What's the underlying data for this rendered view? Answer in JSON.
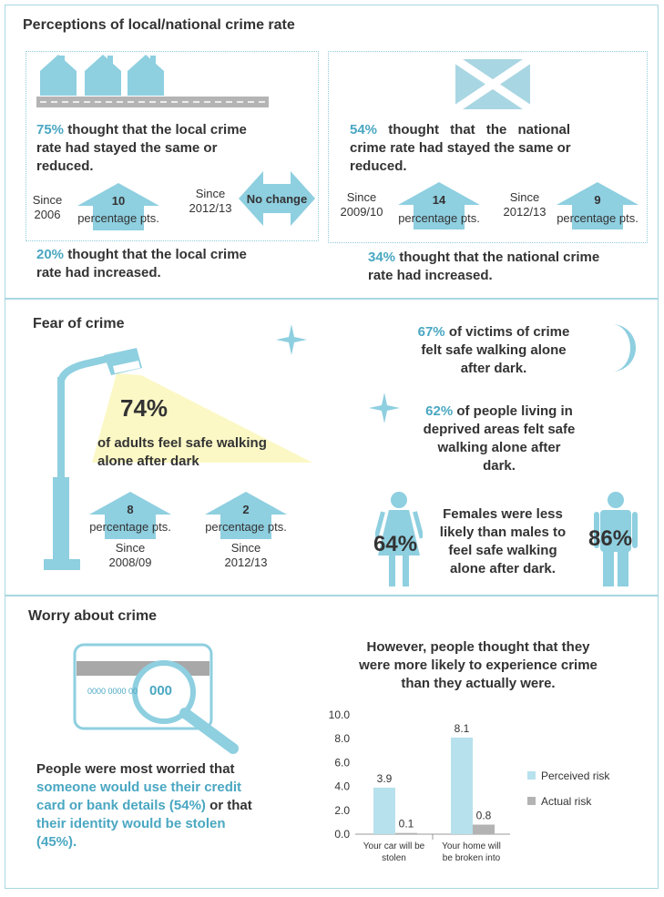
{
  "colors": {
    "accent": "#4aa7c2",
    "icon_blue": "#8ecfe0",
    "border": "#a9d6e2",
    "cone_yellow": "#fbf8c6",
    "actual_grey": "#b3b3b3"
  },
  "perceptions": {
    "title": "Perceptions of local/national crime rate",
    "local": {
      "icon": "houses-icon",
      "stayed_pct": "75%",
      "stayed_text_1": " thought that the local crime",
      "stayed_text_2": "rate had stayed the same or",
      "stayed_text_3": "reduced.",
      "since_a_1": "Since",
      "since_a_2": "2006",
      "arrow_a_value": "10",
      "arrow_a_label": "percentage pts.",
      "since_b_1": "Since",
      "since_b_2": "2012/13",
      "no_change": "No change",
      "increased_pct": "20%",
      "increased_text_1": " thought that the local crime",
      "increased_text_2": "rate had increased."
    },
    "national": {
      "icon": "saltire-flag-icon",
      "stayed_pct": "54%",
      "stayed_text_1": " thought that the national",
      "stayed_text_2": "crime rate had stayed the same or",
      "stayed_text_3": "reduced.",
      "since_a_1": "Since",
      "since_a_2": "2009/10",
      "arrow_a_value": "14",
      "arrow_a_label": "percentage pts.",
      "since_b_1": "Since",
      "since_b_2": "2012/13",
      "arrow_b_value": "9",
      "arrow_b_label": "percentage pts.",
      "increased_pct": "34%",
      "increased_text_1": " thought that the national crime",
      "increased_text_2": "rate had increased."
    }
  },
  "fear": {
    "title": "Fear of crime",
    "main_pct": "74%",
    "main_text_1": "of adults feel safe walking",
    "main_text_2": "alone after dark",
    "arrow_a_value": "8",
    "arrow_a_label": "percentage pts.",
    "arrow_a_since_1": "Since",
    "arrow_a_since_2": "2008/09",
    "arrow_b_value": "2",
    "arrow_b_label": "percentage pts.",
    "arrow_b_since_1": "Since",
    "arrow_b_since_2": "2012/13",
    "victims_pct": "67%",
    "victims_text_1": " of victims of crime",
    "victims_text_2": "felt safe walking alone",
    "victims_text_3": "after dark.",
    "deprived_pct": "62%",
    "deprived_text_1": " of people living in",
    "deprived_text_2": "deprived areas felt safe",
    "deprived_text_3": "walking alone after",
    "deprived_text_4": "dark.",
    "female_pct": "64%",
    "male_pct": "86%",
    "gender_text_1": "Females were less",
    "gender_text_2": "likely than males to",
    "gender_text_3": "feel safe walking",
    "gender_text_4": "alone after dark."
  },
  "worry": {
    "title": "Worry about crime",
    "card_number": "0000 0000 00",
    "card_zoom": "000",
    "text_1": "People  were most worried that",
    "text_2": "someone would use their credit",
    "text_3": "card or bank details (54%)",
    "text_3b": " or that",
    "text_4": "their identity would be stolen",
    "text_5": "(45%).",
    "however_1": "However, people thought that they",
    "however_2": "were more  likely to experience crime",
    "however_3": "than they actually were."
  },
  "chart_data": {
    "type": "bar",
    "categories": [
      "Your car will be stolen",
      "Your home will be broken into"
    ],
    "category_lines": [
      [
        "Your car will be",
        "stolen"
      ],
      [
        "Your home will",
        "be broken into"
      ]
    ],
    "series": [
      {
        "name": "Perceived risk",
        "values": [
          3.9,
          8.1
        ],
        "labels": [
          "3.9",
          "8.1"
        ],
        "color": "#b7e1ec"
      },
      {
        "name": "Actual risk",
        "values": [
          0.1,
          0.8
        ],
        "labels": [
          "0.1",
          "0.8"
        ],
        "color": "#b3b3b3"
      }
    ],
    "ylim": [
      0,
      10
    ],
    "yticks": [
      "0.0",
      "2.0",
      "4.0",
      "6.0",
      "8.0",
      "10.0"
    ],
    "legend_position": "right",
    "grid": false
  }
}
